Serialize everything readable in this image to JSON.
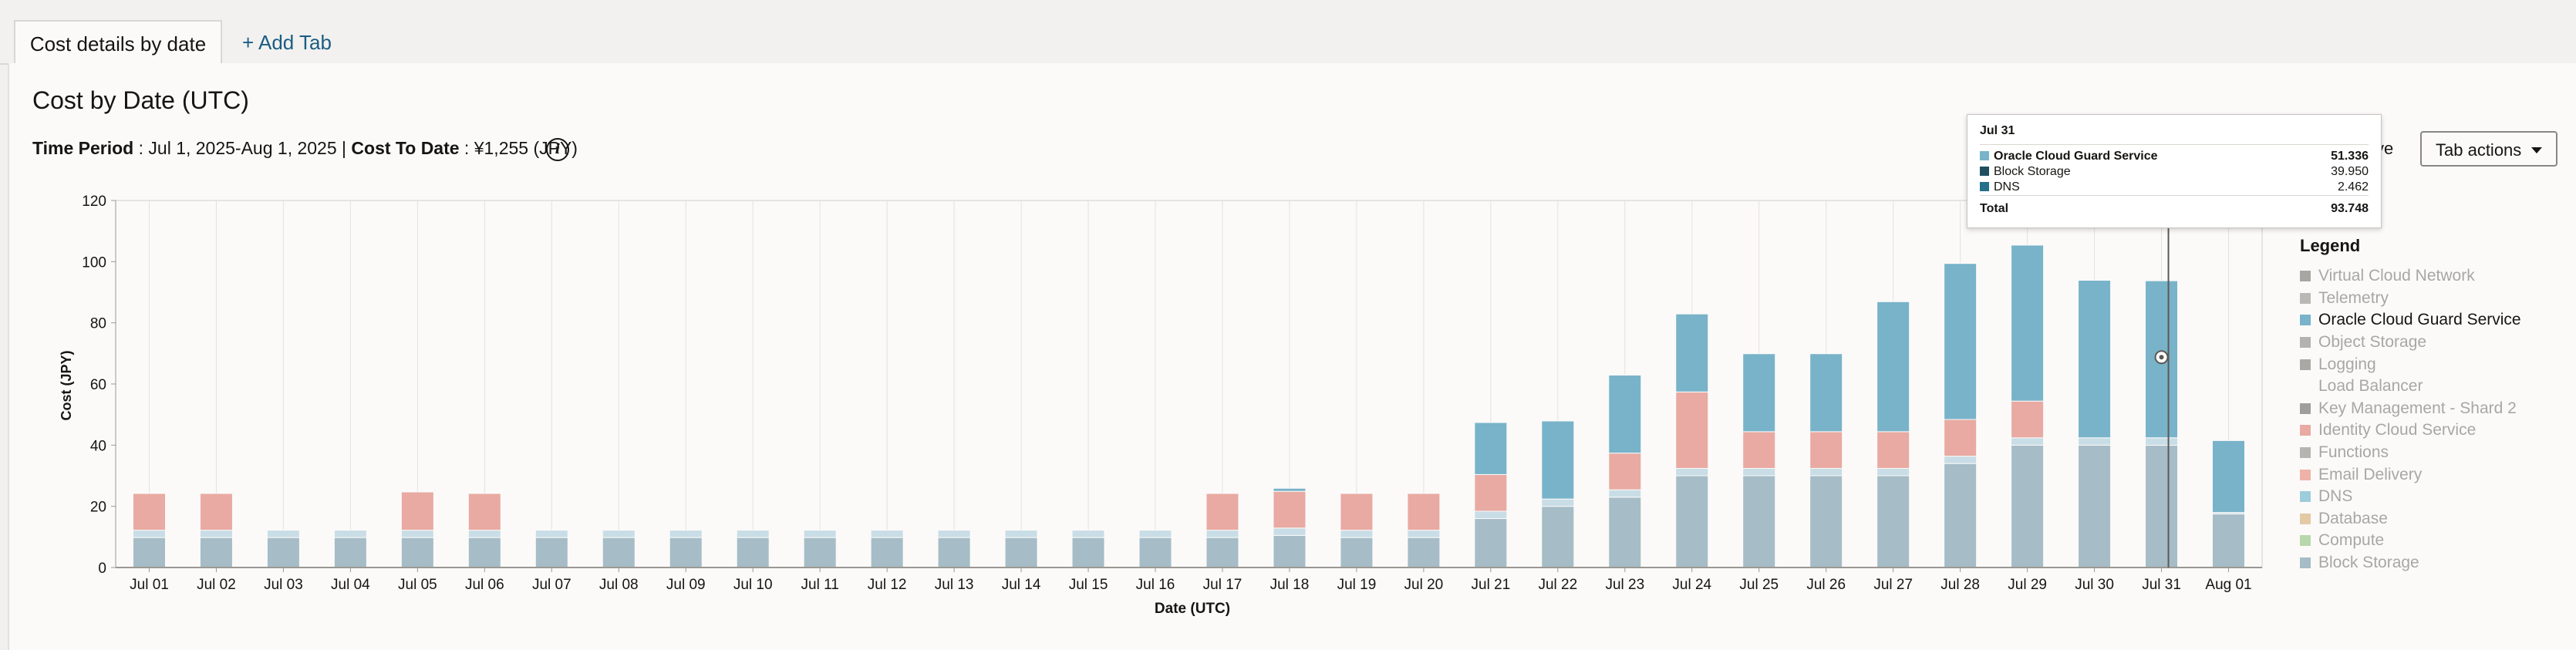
{
  "tabs": {
    "active_label": "Cost details by date",
    "add_label": "+ Add Tab"
  },
  "header": {
    "title": "Cost by Date (UTC)",
    "period_label": "Time Period",
    "period_value": " : Jul 1, 2025-Aug 1, 2025 | ",
    "cost_label": "Cost To Date",
    "cost_value": " : ¥1,255 (JPY)",
    "info_icon": "info-icon",
    "partial_button": "ve",
    "tab_actions_label": "Tab actions"
  },
  "legend": {
    "title": "Legend",
    "items": [
      {
        "label": "Virtual Cloud Network",
        "color": "#a7a6a3",
        "active": false
      },
      {
        "label": "Telemetry",
        "color": "#b9b8b5",
        "active": false
      },
      {
        "label": "Oracle Cloud Guard Service",
        "color": "#78b3c9",
        "active": true
      },
      {
        "label": "Object Storage",
        "color": "#b3b2af",
        "active": false
      },
      {
        "label": "Logging",
        "color": "#a9a8a5",
        "active": false
      },
      {
        "label": "Load Balancer",
        "color": "",
        "active": false
      },
      {
        "label": "Key Management - Shard 2",
        "color": "#9f9e9b",
        "active": false
      },
      {
        "label": "Identity Cloud Service",
        "color": "#e8aaa2",
        "active": false
      },
      {
        "label": "Functions",
        "color": "#b5b4b1",
        "active": false
      },
      {
        "label": "Email Delivery",
        "color": "#efb2a8",
        "active": false
      },
      {
        "label": "DNS",
        "color": "#9dcddd",
        "active": false
      },
      {
        "label": "Database",
        "color": "#e3c9a4",
        "active": false
      },
      {
        "label": "Compute",
        "color": "#b8d7aa",
        "active": false
      },
      {
        "label": "Block Storage",
        "color": "#a6bcc6",
        "active": false
      }
    ]
  },
  "tooltip": {
    "date": "Jul 31",
    "rows": [
      {
        "label": "Oracle Cloud Guard Service",
        "value": "51.336",
        "color": "#78b3c9",
        "bold": true
      },
      {
        "label": "Block Storage",
        "value": "39.950",
        "color": "#1f4e5f",
        "bold": false
      },
      {
        "label": "DNS",
        "value": "2.462",
        "color": "#246f8a",
        "bold": false
      }
    ],
    "total_label": "Total",
    "total_value": "93.748"
  },
  "chart_data": {
    "type": "bar",
    "stacked": true,
    "title": "",
    "xlabel": "Date (UTC)",
    "ylabel": "Cost (JPY)",
    "ylim": [
      0,
      120
    ],
    "yticks": [
      0,
      20,
      40,
      60,
      80,
      100,
      120
    ],
    "grid": "vertical",
    "legend_position": "right",
    "categories": [
      "Jul 01",
      "Jul 02",
      "Jul 03",
      "Jul 04",
      "Jul 05",
      "Jul 06",
      "Jul 07",
      "Jul 08",
      "Jul 09",
      "Jul 10",
      "Jul 11",
      "Jul 12",
      "Jul 13",
      "Jul 14",
      "Jul 15",
      "Jul 16",
      "Jul 17",
      "Jul 18",
      "Jul 19",
      "Jul 20",
      "Jul 21",
      "Jul 22",
      "Jul 23",
      "Jul 24",
      "Jul 25",
      "Jul 26",
      "Jul 27",
      "Jul 28",
      "Jul 29",
      "Jul 30",
      "Jul 31",
      "Aug 01"
    ],
    "series": [
      {
        "name": "Block Storage",
        "color": "#a6bcc6",
        "values": [
          9.8,
          9.8,
          9.8,
          9.8,
          9.8,
          9.8,
          9.8,
          9.8,
          9.8,
          9.8,
          9.8,
          9.8,
          9.8,
          9.8,
          9.8,
          9.8,
          9.8,
          10.5,
          9.8,
          9.8,
          16,
          20,
          23,
          30,
          30,
          30,
          30,
          34,
          40,
          40,
          39.95,
          17.5
        ]
      },
      {
        "name": "DNS",
        "color": "#c9dde6",
        "values": [
          2.4,
          2.4,
          2.4,
          2.4,
          2.4,
          2.4,
          2.4,
          2.4,
          2.4,
          2.4,
          2.4,
          2.4,
          2.4,
          2.4,
          2.4,
          2.4,
          2.4,
          2.4,
          2.4,
          2.4,
          2.4,
          2.4,
          2.4,
          2.4,
          2.4,
          2.4,
          2.4,
          2.4,
          2.4,
          2.4,
          2.462,
          0.5
        ]
      },
      {
        "name": "Email Delivery",
        "color": "#e8aaa2",
        "values": [
          12,
          12,
          0,
          0,
          12.5,
          12,
          0,
          0,
          0,
          0,
          0,
          0,
          0,
          0,
          0,
          0,
          12,
          12,
          12,
          12,
          12,
          0,
          12,
          25,
          12,
          12,
          12,
          12,
          12,
          0,
          0,
          0
        ]
      },
      {
        "name": "Oracle Cloud Guard Service",
        "color": "#78b3c9",
        "values": [
          0,
          0,
          0,
          0,
          0,
          0,
          0,
          0,
          0,
          0,
          0,
          0,
          0,
          0,
          0,
          0,
          0,
          1,
          0,
          0,
          17,
          25.5,
          25.5,
          25.5,
          25.5,
          25.5,
          42.5,
          51,
          51,
          51.5,
          51.336,
          23.5
        ]
      }
    ],
    "highlight": "Jul 31"
  }
}
